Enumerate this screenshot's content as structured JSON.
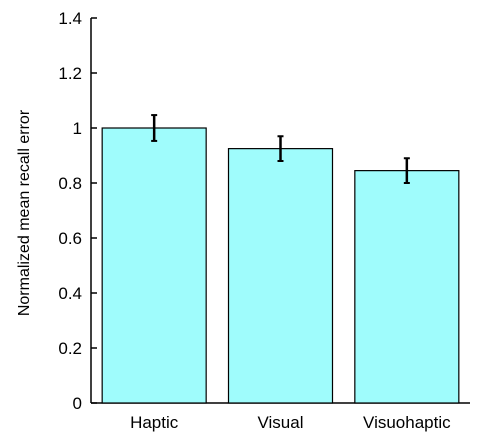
{
  "chart_data": {
    "type": "bar",
    "title": "",
    "xlabel": "",
    "ylabel": "Normalized mean recall error",
    "categories": [
      "Haptic",
      "Visual",
      "Visuohaptic"
    ],
    "values": [
      1.0,
      0.925,
      0.845
    ],
    "errors": [
      0.047,
      0.045,
      0.045
    ],
    "ylim": [
      0,
      1.4
    ],
    "yticks": [
      0,
      0.2,
      0.4,
      0.6,
      0.8,
      1,
      1.2,
      1.4
    ],
    "ytick_labels": [
      "0",
      "0.2",
      "0.4",
      "0.6",
      "0.8",
      "1",
      "1.2",
      "1.4"
    ],
    "grid": false,
    "legend": "none",
    "colors": {
      "bar_fill": "#9ffcfc",
      "bar_stroke": "#000000",
      "axis": "#000000",
      "error_bar": "#000000"
    }
  }
}
